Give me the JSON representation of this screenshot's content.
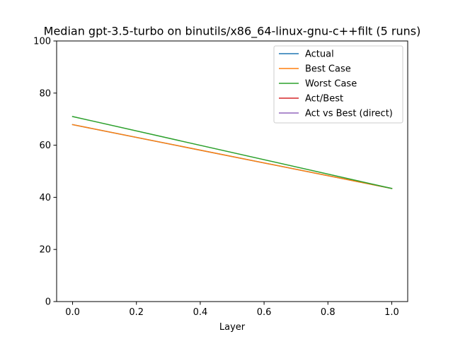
{
  "chart_data": {
    "type": "line",
    "title": "Median gpt-3.5-turbo on binutils/x86_64-linux-gnu-c++filt (5 runs)",
    "xlabel": "Layer",
    "ylabel": "",
    "xlim": [
      -0.05,
      1.05
    ],
    "ylim": [
      0,
      100
    ],
    "xticks": [
      0.0,
      0.2,
      0.4,
      0.6,
      0.8,
      1.0
    ],
    "xtick_labels": [
      "0.0",
      "0.2",
      "0.4",
      "0.6",
      "0.8",
      "1.0"
    ],
    "yticks": [
      0,
      20,
      40,
      60,
      80,
      100
    ],
    "ytick_labels": [
      "0",
      "20",
      "40",
      "60",
      "80",
      "100"
    ],
    "grid": false,
    "legend_position": "top-right",
    "series": [
      {
        "name": "Actual",
        "color": "#1f77b4",
        "x": [
          0,
          1
        ],
        "y": [
          67.9,
          43.4
        ]
      },
      {
        "name": "Best Case",
        "color": "#ff7f0e",
        "x": [
          0,
          1
        ],
        "y": [
          67.9,
          43.4
        ]
      },
      {
        "name": "Worst Case",
        "color": "#2ca02c",
        "x": [
          0,
          1
        ],
        "y": [
          71.0,
          43.4
        ]
      },
      {
        "name": "Act/Best",
        "color": "#d62728",
        "x": [],
        "y": []
      },
      {
        "name": "Act vs Best (direct)",
        "color": "#9467bd",
        "x": [],
        "y": []
      }
    ]
  }
}
